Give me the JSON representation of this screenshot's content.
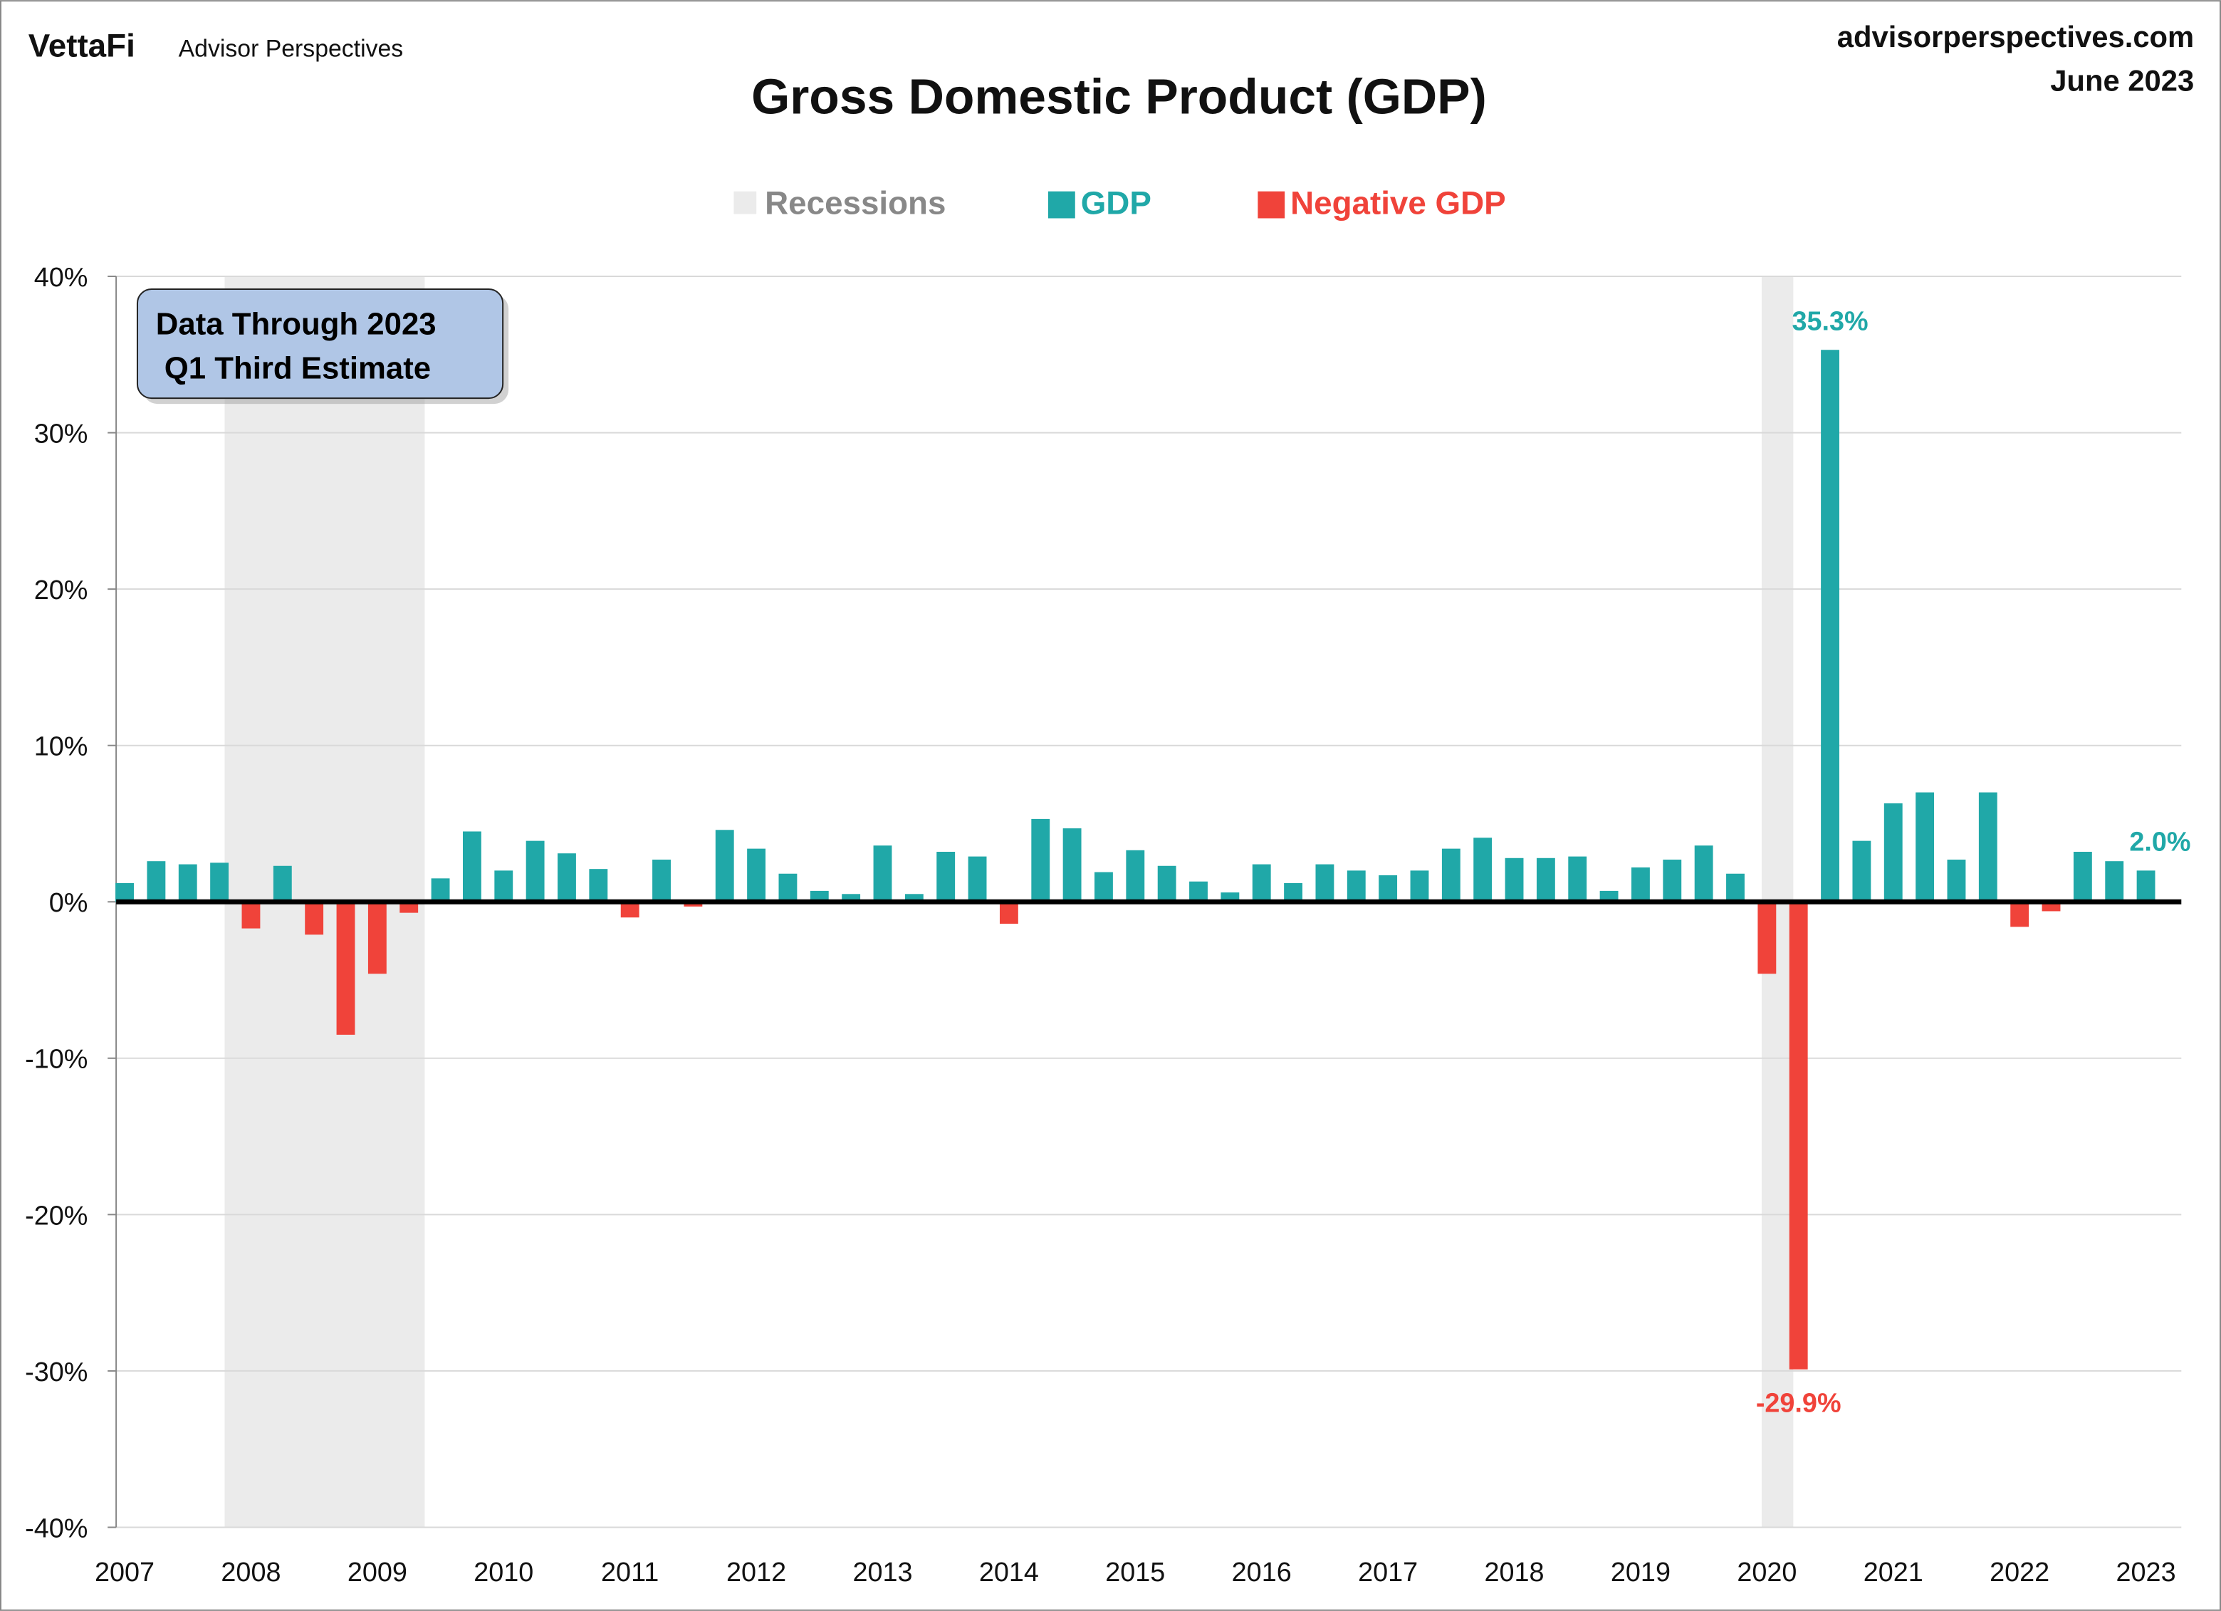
{
  "header": {
    "logo": "VettaFi",
    "brand": "Advisor Perspectives",
    "site": "advisorperspectives.com",
    "date": "June 2023"
  },
  "annotation": {
    "line1": "Data Through 2023",
    "line2": "Q1 Third Estimate"
  },
  "colors": {
    "gdp": "#20A8A8",
    "negative": "#F0433A",
    "recession": "#EBEBEB",
    "annotation_box": "#B0C6E6"
  },
  "chart_data": {
    "type": "bar",
    "title": "Gross Domestic Product (GDP)",
    "legend": [
      "Recessions",
      "GDP",
      "Negative GDP"
    ],
    "legend_placement": "top",
    "ylim": [
      -40,
      40
    ],
    "yticks": [
      "40%",
      "30%",
      "20%",
      "10%",
      "0%",
      "-10%",
      "-20%",
      "-30%",
      "-40%"
    ],
    "xticks": [
      "2007",
      "2008",
      "2009",
      "2010",
      "2011",
      "2012",
      "2013",
      "2014",
      "2015",
      "2016",
      "2017",
      "2018",
      "2019",
      "2020",
      "2021",
      "2022",
      "2023"
    ],
    "grid": true,
    "start": "2007 Q1",
    "frequency": "quarterly",
    "values": [
      1.2,
      2.6,
      2.4,
      2.5,
      -1.7,
      2.3,
      -2.1,
      -8.5,
      -4.6,
      -0.7,
      1.5,
      4.5,
      2.0,
      3.9,
      3.1,
      2.1,
      -1.0,
      2.7,
      -0.3,
      4.6,
      3.4,
      1.8,
      0.7,
      0.5,
      3.6,
      0.5,
      3.2,
      2.9,
      -1.4,
      5.3,
      4.7,
      1.9,
      3.3,
      2.3,
      1.3,
      0.6,
      2.4,
      1.2,
      2.4,
      2.0,
      1.7,
      2.0,
      3.4,
      4.1,
      2.8,
      2.8,
      2.9,
      0.7,
      2.2,
      2.7,
      3.6,
      1.8,
      -4.6,
      -29.9,
      35.3,
      3.9,
      6.3,
      7.0,
      2.7,
      7.0,
      -1.6,
      -0.6,
      3.2,
      2.6,
      2.0
    ],
    "recessions": [
      {
        "start": "2007-12",
        "end": "2009-06"
      },
      {
        "start": "2020-02",
        "end": "2020-04"
      }
    ],
    "data_labels": [
      {
        "index": 54,
        "text": "35.3%"
      },
      {
        "index": 53,
        "text": "-29.9%"
      },
      {
        "index": 64,
        "text": "2.0%"
      }
    ]
  }
}
